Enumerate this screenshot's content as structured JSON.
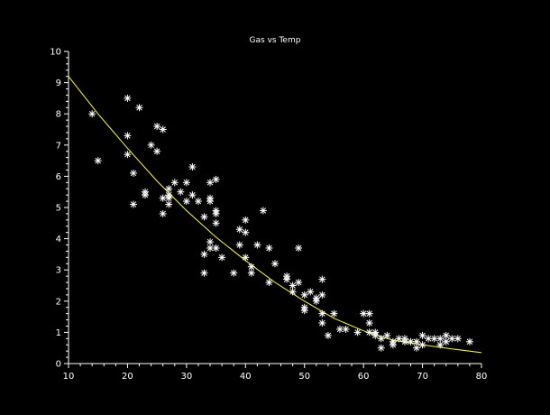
{
  "chart_data": {
    "type": "scatter",
    "title": "Gas vs Temp",
    "xlabel": "",
    "ylabel": "",
    "xlim": [
      10,
      80
    ],
    "ylim": [
      0,
      10
    ],
    "grid": false,
    "x_ticks": [
      "10",
      "20",
      "30",
      "40",
      "50",
      "60",
      "70",
      "80"
    ],
    "y_ticks": [
      "0",
      "1",
      "2",
      "3",
      "4",
      "5",
      "6",
      "7",
      "8",
      "9",
      "10"
    ],
    "colors": {
      "background": "#000000",
      "axes": "#ffffff",
      "points": "#ffffff",
      "fit_line": "#ffff00"
    },
    "series": [
      {
        "kind": "points",
        "marker": "asterisk",
        "x": [
          14,
          15,
          20,
          20,
          20,
          21,
          21,
          22,
          23,
          23,
          24,
          25,
          25,
          26,
          26,
          26,
          27,
          27,
          27,
          27,
          28,
          29,
          30,
          30,
          31,
          31,
          32,
          33,
          33,
          33,
          34,
          34,
          34,
          34,
          34,
          35,
          35,
          35,
          35,
          35,
          36,
          38,
          39,
          39,
          40,
          40,
          40,
          41,
          41,
          42,
          43,
          44,
          44,
          45,
          47,
          47,
          48,
          48,
          49,
          49,
          50,
          50,
          50,
          51,
          52,
          52,
          53,
          53,
          53,
          53,
          54,
          55,
          56,
          57,
          59,
          60,
          61,
          61,
          61,
          62,
          62,
          63,
          63,
          64,
          65,
          65,
          66,
          67,
          67,
          68,
          69,
          69,
          70,
          70,
          71,
          72,
          73,
          73,
          74,
          74,
          75,
          76,
          78
        ],
        "y": [
          8.0,
          6.5,
          8.5,
          7.3,
          6.7,
          6.1,
          5.1,
          8.2,
          5.5,
          5.4,
          7.0,
          7.6,
          6.8,
          7.5,
          5.3,
          4.8,
          5.6,
          5.4,
          5.1,
          5.3,
          5.8,
          5.5,
          5.8,
          5.2,
          6.3,
          5.4,
          5.2,
          3.5,
          2.9,
          4.7,
          5.8,
          5.3,
          5.2,
          3.9,
          3.7,
          5.9,
          4.9,
          4.8,
          3.7,
          4.5,
          3.4,
          2.9,
          3.8,
          4.3,
          4.6,
          4.2,
          3.4,
          3.1,
          2.9,
          3.8,
          4.9,
          3.7,
          2.6,
          3.2,
          2.7,
          2.8,
          2.5,
          2.3,
          2.6,
          3.7,
          2.2,
          1.8,
          1.7,
          2.3,
          2.1,
          2.0,
          2.7,
          2.2,
          1.6,
          1.3,
          0.9,
          1.6,
          1.1,
          1.1,
          1.0,
          1.6,
          1.0,
          1.6,
          1.3,
          1.0,
          0.9,
          0.8,
          0.5,
          0.9,
          0.7,
          0.6,
          0.8,
          0.7,
          0.8,
          0.7,
          0.7,
          0.5,
          0.9,
          0.6,
          0.8,
          0.8,
          0.8,
          0.6,
          0.9,
          0.7,
          0.8,
          0.8,
          0.7
        ]
      },
      {
        "kind": "fit_curve",
        "color": "#ffff00",
        "x": [
          10,
          15,
          20,
          25,
          30,
          35,
          40,
          45,
          50,
          55,
          60,
          65,
          70,
          75,
          80
        ],
        "y": [
          9.2,
          8.0,
          6.9,
          5.85,
          4.9,
          4.05,
          3.3,
          2.6,
          2.0,
          1.45,
          1.05,
          0.75,
          0.6,
          0.47,
          0.35
        ]
      }
    ]
  }
}
